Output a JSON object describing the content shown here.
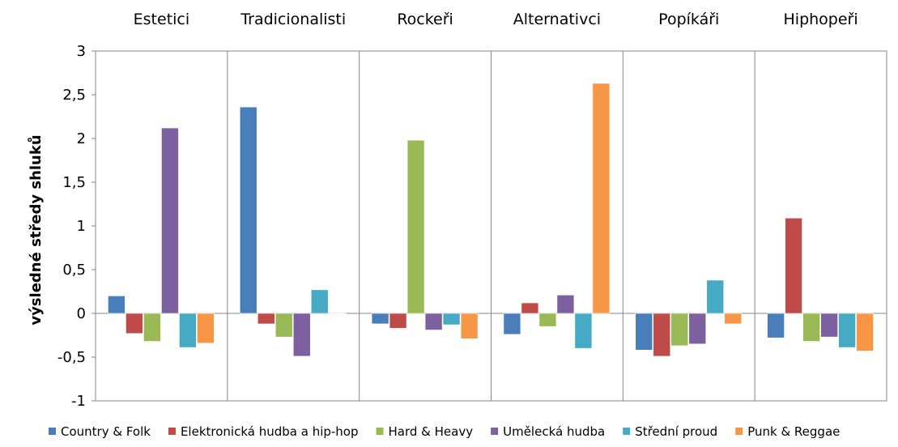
{
  "chart_data": {
    "type": "bar",
    "title": "",
    "xlabel": "",
    "ylabel": "výsledné středy shluků",
    "categories": [
      "Estetici",
      "Tradicionalisti",
      "Rockeři",
      "Alternativci",
      "Popíkáři",
      "Hiphopeři"
    ],
    "series": [
      {
        "name": "Country & Folk",
        "color": "#4a7ebb",
        "values": [
          0.2,
          2.36,
          -0.12,
          -0.24,
          -0.42,
          -0.28
        ]
      },
      {
        "name": "Elektronická hudba a hip-hop",
        "color": "#be4b48",
        "values": [
          -0.23,
          -0.12,
          -0.17,
          0.12,
          -0.49,
          1.09
        ]
      },
      {
        "name": "Hard & Heavy",
        "color": "#98b954",
        "values": [
          -0.32,
          -0.27,
          1.98,
          -0.15,
          -0.37,
          -0.32
        ]
      },
      {
        "name": "Umělecká hudba",
        "color": "#7d60a0",
        "values": [
          2.12,
          -0.49,
          -0.19,
          0.21,
          -0.35,
          -0.27
        ]
      },
      {
        "name": "Střední proud",
        "color": "#46aac5",
        "values": [
          -0.39,
          0.27,
          -0.13,
          -0.4,
          0.38,
          -0.39
        ]
      },
      {
        "name": "Punk & Reggae",
        "color": "#f79646",
        "values": [
          -0.34,
          0.0,
          -0.29,
          2.63,
          -0.12,
          -0.43
        ]
      }
    ],
    "yticks": [
      "3",
      "2,5",
      "2",
      "1,5",
      "1",
      "0,5",
      "0",
      "-0,5",
      "-1"
    ],
    "ylim": [
      -1,
      3
    ],
    "grid": false,
    "legend_position": "bottom"
  }
}
